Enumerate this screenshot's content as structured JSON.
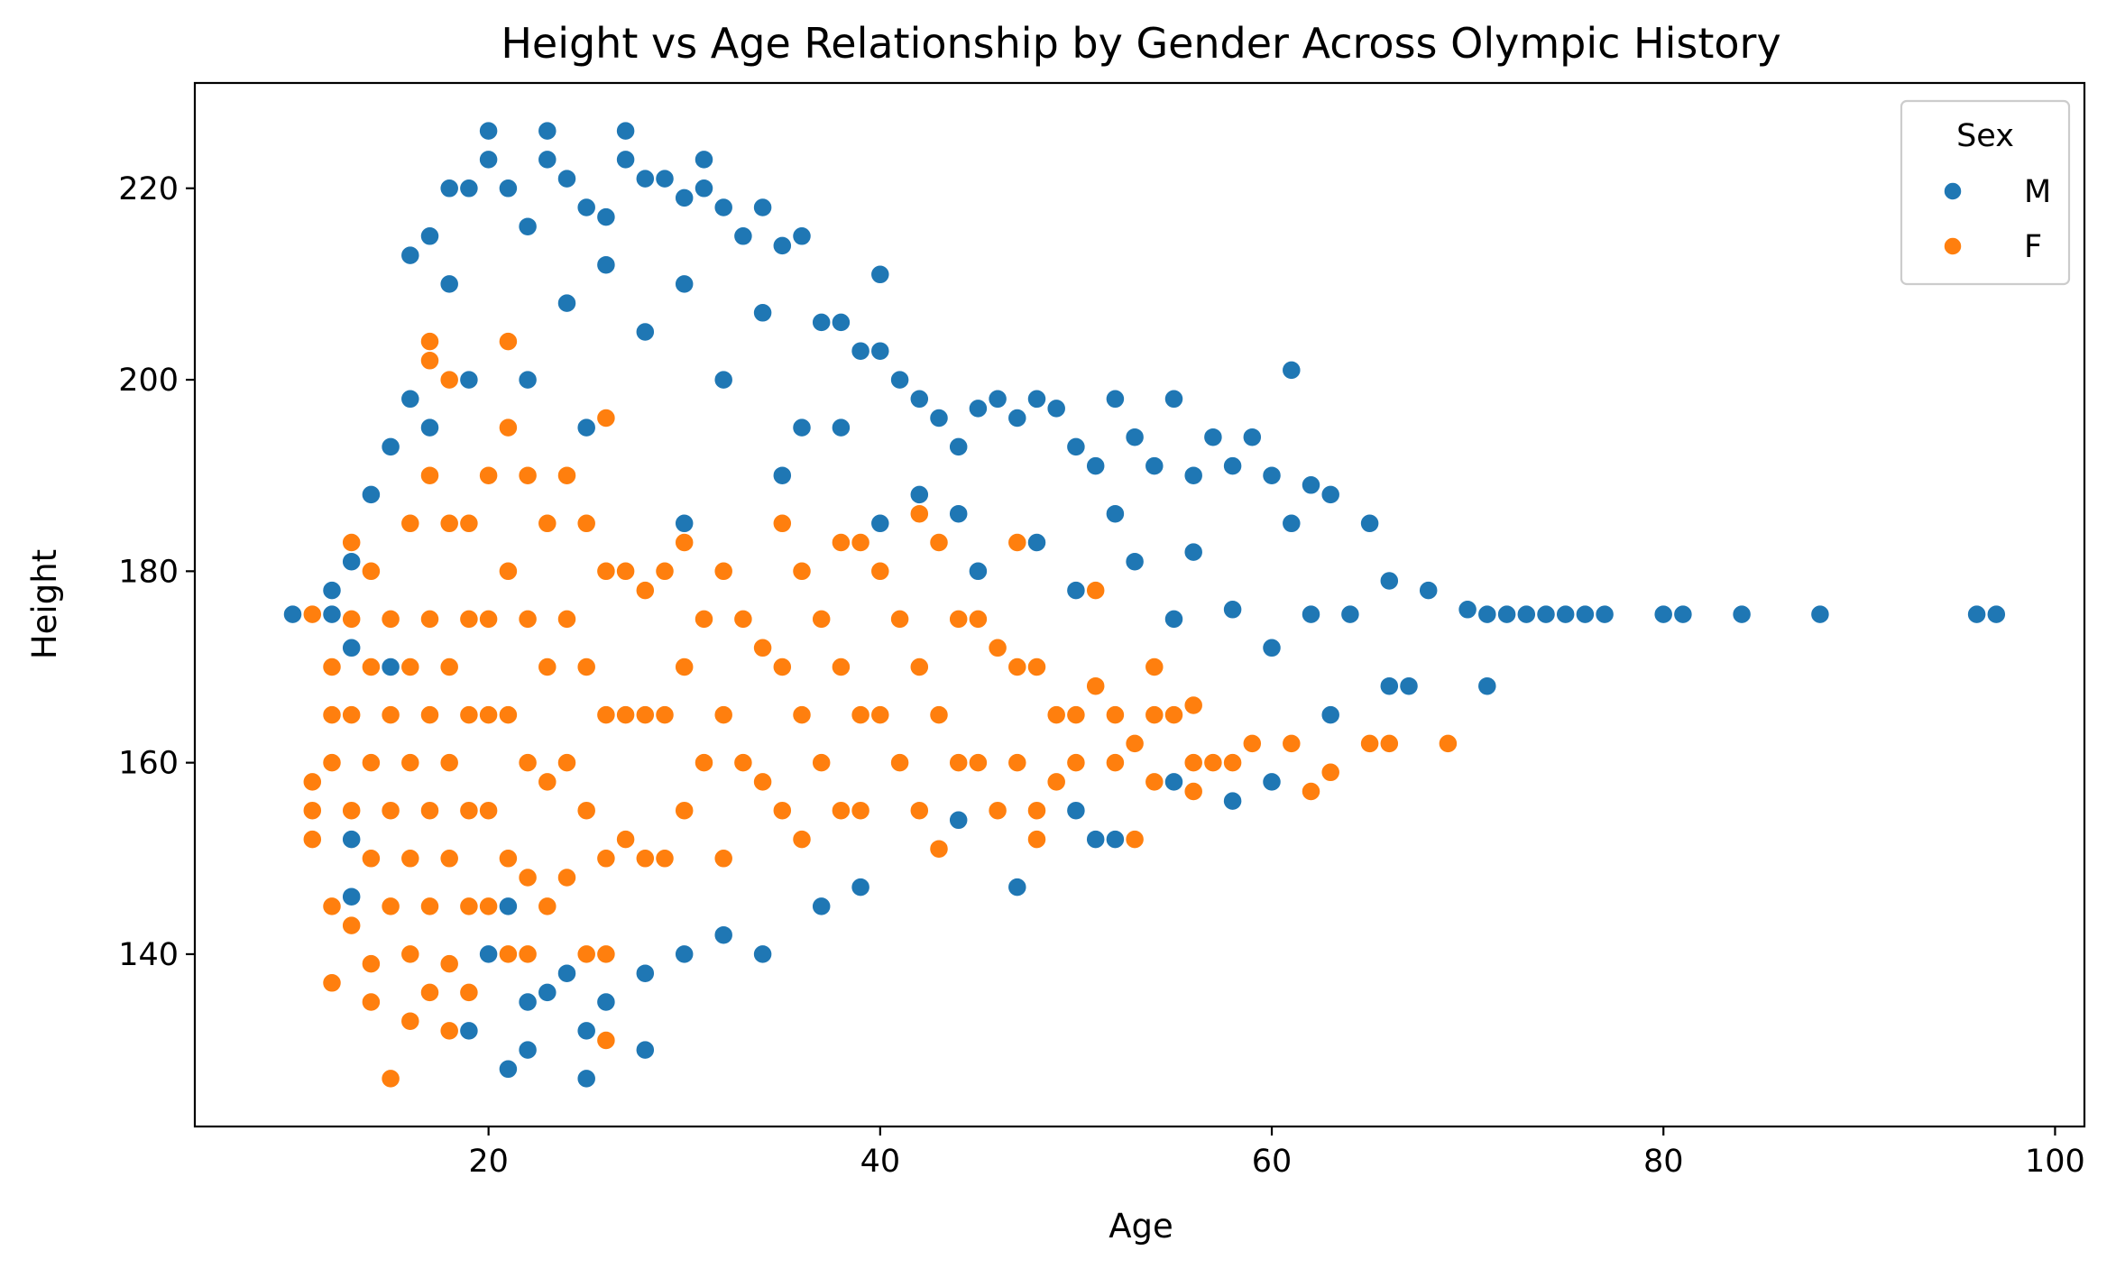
{
  "chart_data": {
    "type": "scatter",
    "title": "Height vs Age Relationship by Gender Across Olympic History",
    "xlabel": "Age",
    "ylabel": "Height",
    "xlim": [
      5,
      101.5
    ],
    "ylim": [
      122,
      231
    ],
    "xticks": [
      20,
      40,
      60,
      80,
      100
    ],
    "yticks": [
      140,
      160,
      180,
      200,
      220
    ],
    "grid": false,
    "legend": {
      "title": "Sex",
      "position": "top-right"
    },
    "series": [
      {
        "name": "M",
        "color": "#1f77b4",
        "points": [
          [
            10,
            175.5
          ],
          [
            12,
            178
          ],
          [
            13,
            181
          ],
          [
            13,
            183
          ],
          [
            14,
            188
          ],
          [
            15,
            193
          ],
          [
            16,
            198
          ],
          [
            16,
            213
          ],
          [
            17,
            215
          ],
          [
            18,
            210
          ],
          [
            18,
            220
          ],
          [
            19,
            220
          ],
          [
            20,
            226
          ],
          [
            20,
            223
          ],
          [
            21,
            220
          ],
          [
            22,
            216
          ],
          [
            23,
            226
          ],
          [
            23,
            223
          ],
          [
            24,
            221
          ],
          [
            25,
            218
          ],
          [
            26,
            217
          ],
          [
            27,
            226
          ],
          [
            27,
            223
          ],
          [
            28,
            221
          ],
          [
            29,
            221
          ],
          [
            30,
            219
          ],
          [
            31,
            223
          ],
          [
            31,
            220
          ],
          [
            32,
            218
          ],
          [
            33,
            215
          ],
          [
            34,
            218
          ],
          [
            35,
            214
          ],
          [
            36,
            215
          ],
          [
            37,
            206
          ],
          [
            38,
            206
          ],
          [
            39,
            203
          ],
          [
            40,
            211
          ],
          [
            40,
            203
          ],
          [
            41,
            200
          ],
          [
            42,
            198
          ],
          [
            43,
            196
          ],
          [
            44,
            193
          ],
          [
            45,
            197
          ],
          [
            46,
            198
          ],
          [
            47,
            196
          ],
          [
            48,
            198
          ],
          [
            49,
            197
          ],
          [
            50,
            193
          ],
          [
            51,
            191
          ],
          [
            52,
            198
          ],
          [
            53,
            194
          ],
          [
            54,
            191
          ],
          [
            55,
            198
          ],
          [
            56,
            190
          ],
          [
            57,
            194
          ],
          [
            58,
            191
          ],
          [
            59,
            194
          ],
          [
            60,
            190
          ],
          [
            61,
            201
          ],
          [
            61,
            185
          ],
          [
            62,
            189
          ],
          [
            63,
            188
          ],
          [
            65,
            185
          ],
          [
            66,
            179
          ],
          [
            68,
            178
          ],
          [
            70,
            176
          ],
          [
            71,
            175.5
          ],
          [
            72,
            175.5
          ],
          [
            73,
            175.5
          ],
          [
            74,
            175.5
          ],
          [
            75,
            175.5
          ],
          [
            76,
            175.5
          ],
          [
            77,
            175.5
          ],
          [
            80,
            175.5
          ],
          [
            81,
            175.5
          ],
          [
            84,
            175.5
          ],
          [
            88,
            175.5
          ],
          [
            96,
            175.5
          ],
          [
            97,
            175.5
          ],
          [
            71,
            168
          ],
          [
            66,
            168
          ],
          [
            67,
            168
          ],
          [
            63,
            165
          ],
          [
            60,
            158
          ],
          [
            58,
            156
          ],
          [
            55,
            158
          ],
          [
            53,
            152
          ],
          [
            52,
            152
          ],
          [
            51,
            152
          ],
          [
            50,
            155
          ],
          [
            47,
            147
          ],
          [
            44,
            154
          ],
          [
            39,
            147
          ],
          [
            37,
            145
          ],
          [
            34,
            140
          ],
          [
            32,
            142
          ],
          [
            30,
            140
          ],
          [
            28,
            130
          ],
          [
            28,
            138
          ],
          [
            26,
            135
          ],
          [
            25,
            127
          ],
          [
            25,
            132
          ],
          [
            24,
            138
          ],
          [
            23,
            136
          ],
          [
            22,
            135
          ],
          [
            22,
            130
          ],
          [
            21,
            128
          ],
          [
            19,
            132
          ],
          [
            20,
            140
          ],
          [
            21,
            145
          ],
          [
            14,
            150
          ],
          [
            13,
            146
          ],
          [
            13,
            152
          ],
          [
            14,
            160
          ],
          [
            15,
            170
          ],
          [
            13,
            172
          ],
          [
            12,
            175.5
          ],
          [
            30,
            185
          ],
          [
            35,
            190
          ],
          [
            40,
            185
          ],
          [
            45,
            180
          ],
          [
            50,
            178
          ],
          [
            55,
            175
          ],
          [
            60,
            172
          ],
          [
            25,
            195
          ],
          [
            28,
            205
          ],
          [
            32,
            200
          ],
          [
            36,
            195
          ],
          [
            42,
            188
          ],
          [
            48,
            183
          ],
          [
            53,
            181
          ],
          [
            20,
            190
          ],
          [
            22,
            200
          ],
          [
            24,
            208
          ],
          [
            26,
            212
          ],
          [
            30,
            210
          ],
          [
            34,
            207
          ],
          [
            38,
            195
          ],
          [
            44,
            186
          ],
          [
            52,
            186
          ],
          [
            56,
            182
          ],
          [
            58,
            176
          ],
          [
            62,
            175.5
          ],
          [
            64,
            175.5
          ],
          [
            18,
            185
          ],
          [
            19,
            200
          ],
          [
            17,
            195
          ]
        ]
      },
      {
        "name": "F",
        "color": "#ff7f0e",
        "points": [
          [
            11,
            175.5
          ],
          [
            11,
            158
          ],
          [
            11,
            155
          ],
          [
            11,
            152
          ],
          [
            12,
            170
          ],
          [
            12,
            165
          ],
          [
            12,
            160
          ],
          [
            12,
            145
          ],
          [
            12,
            137
          ],
          [
            13,
            183
          ],
          [
            13,
            175
          ],
          [
            13,
            165
          ],
          [
            13,
            155
          ],
          [
            13,
            143
          ],
          [
            14,
            180
          ],
          [
            14,
            170
          ],
          [
            14,
            160
          ],
          [
            14,
            150
          ],
          [
            14,
            139
          ],
          [
            14,
            135
          ],
          [
            15,
            175
          ],
          [
            15,
            165
          ],
          [
            15,
            155
          ],
          [
            15,
            145
          ],
          [
            15,
            127
          ],
          [
            16,
            185
          ],
          [
            16,
            170
          ],
          [
            16,
            160
          ],
          [
            16,
            150
          ],
          [
            16,
            140
          ],
          [
            16,
            133
          ],
          [
            17,
            204
          ],
          [
            17,
            202
          ],
          [
            17,
            190
          ],
          [
            17,
            175
          ],
          [
            17,
            165
          ],
          [
            17,
            155
          ],
          [
            17,
            145
          ],
          [
            17,
            136
          ],
          [
            18,
            200
          ],
          [
            18,
            185
          ],
          [
            18,
            170
          ],
          [
            18,
            160
          ],
          [
            18,
            150
          ],
          [
            18,
            139
          ],
          [
            18,
            132
          ],
          [
            19,
            185
          ],
          [
            19,
            175
          ],
          [
            19,
            165
          ],
          [
            19,
            155
          ],
          [
            19,
            145
          ],
          [
            19,
            136
          ],
          [
            20,
            190
          ],
          [
            20,
            175
          ],
          [
            20,
            165
          ],
          [
            20,
            155
          ],
          [
            20,
            145
          ],
          [
            21,
            204
          ],
          [
            21,
            195
          ],
          [
            21,
            180
          ],
          [
            21,
            165
          ],
          [
            21,
            150
          ],
          [
            21,
            140
          ],
          [
            22,
            190
          ],
          [
            22,
            175
          ],
          [
            22,
            160
          ],
          [
            22,
            148
          ],
          [
            22,
            140
          ],
          [
            23,
            185
          ],
          [
            23,
            170
          ],
          [
            23,
            158
          ],
          [
            23,
            145
          ],
          [
            24,
            190
          ],
          [
            24,
            175
          ],
          [
            24,
            160
          ],
          [
            24,
            148
          ],
          [
            25,
            185
          ],
          [
            25,
            170
          ],
          [
            25,
            155
          ],
          [
            25,
            140
          ],
          [
            26,
            196
          ],
          [
            26,
            180
          ],
          [
            26,
            165
          ],
          [
            26,
            150
          ],
          [
            26,
            140
          ],
          [
            26,
            131
          ],
          [
            27,
            180
          ],
          [
            27,
            165
          ],
          [
            27,
            152
          ],
          [
            28,
            178
          ],
          [
            28,
            165
          ],
          [
            28,
            150
          ],
          [
            29,
            180
          ],
          [
            29,
            165
          ],
          [
            29,
            150
          ],
          [
            30,
            183
          ],
          [
            30,
            170
          ],
          [
            30,
            155
          ],
          [
            31,
            175
          ],
          [
            31,
            160
          ],
          [
            32,
            180
          ],
          [
            32,
            165
          ],
          [
            32,
            150
          ],
          [
            33,
            175
          ],
          [
            33,
            160
          ],
          [
            34,
            172
          ],
          [
            34,
            158
          ],
          [
            35,
            185
          ],
          [
            35,
            170
          ],
          [
            35,
            155
          ],
          [
            36,
            180
          ],
          [
            36,
            165
          ],
          [
            36,
            152
          ],
          [
            37,
            175
          ],
          [
            37,
            160
          ],
          [
            38,
            183
          ],
          [
            38,
            170
          ],
          [
            38,
            155
          ],
          [
            39,
            183
          ],
          [
            39,
            165
          ],
          [
            39,
            155
          ],
          [
            40,
            180
          ],
          [
            40,
            165
          ],
          [
            41,
            175
          ],
          [
            41,
            160
          ],
          [
            42,
            186
          ],
          [
            42,
            170
          ],
          [
            42,
            155
          ],
          [
            43,
            183
          ],
          [
            43,
            165
          ],
          [
            43,
            151
          ],
          [
            44,
            175
          ],
          [
            44,
            160
          ],
          [
            45,
            175
          ],
          [
            45,
            160
          ],
          [
            46,
            172
          ],
          [
            46,
            155
          ],
          [
            47,
            183
          ],
          [
            47,
            170
          ],
          [
            47,
            160
          ],
          [
            48,
            170
          ],
          [
            48,
            155
          ],
          [
            48,
            152
          ],
          [
            49,
            165
          ],
          [
            49,
            158
          ],
          [
            50,
            160
          ],
          [
            50,
            165
          ],
          [
            51,
            178
          ],
          [
            51,
            168
          ],
          [
            52,
            160
          ],
          [
            52,
            165
          ],
          [
            53,
            162
          ],
          [
            53,
            152
          ],
          [
            54,
            170
          ],
          [
            54,
            165
          ],
          [
            54,
            158
          ],
          [
            55,
            165
          ],
          [
            56,
            166
          ],
          [
            56,
            160
          ],
          [
            56,
            157
          ],
          [
            57,
            160
          ],
          [
            58,
            160
          ],
          [
            59,
            162
          ],
          [
            61,
            162
          ],
          [
            62,
            157
          ],
          [
            63,
            159
          ],
          [
            65,
            162
          ],
          [
            66,
            162
          ],
          [
            69,
            162
          ]
        ]
      }
    ]
  }
}
